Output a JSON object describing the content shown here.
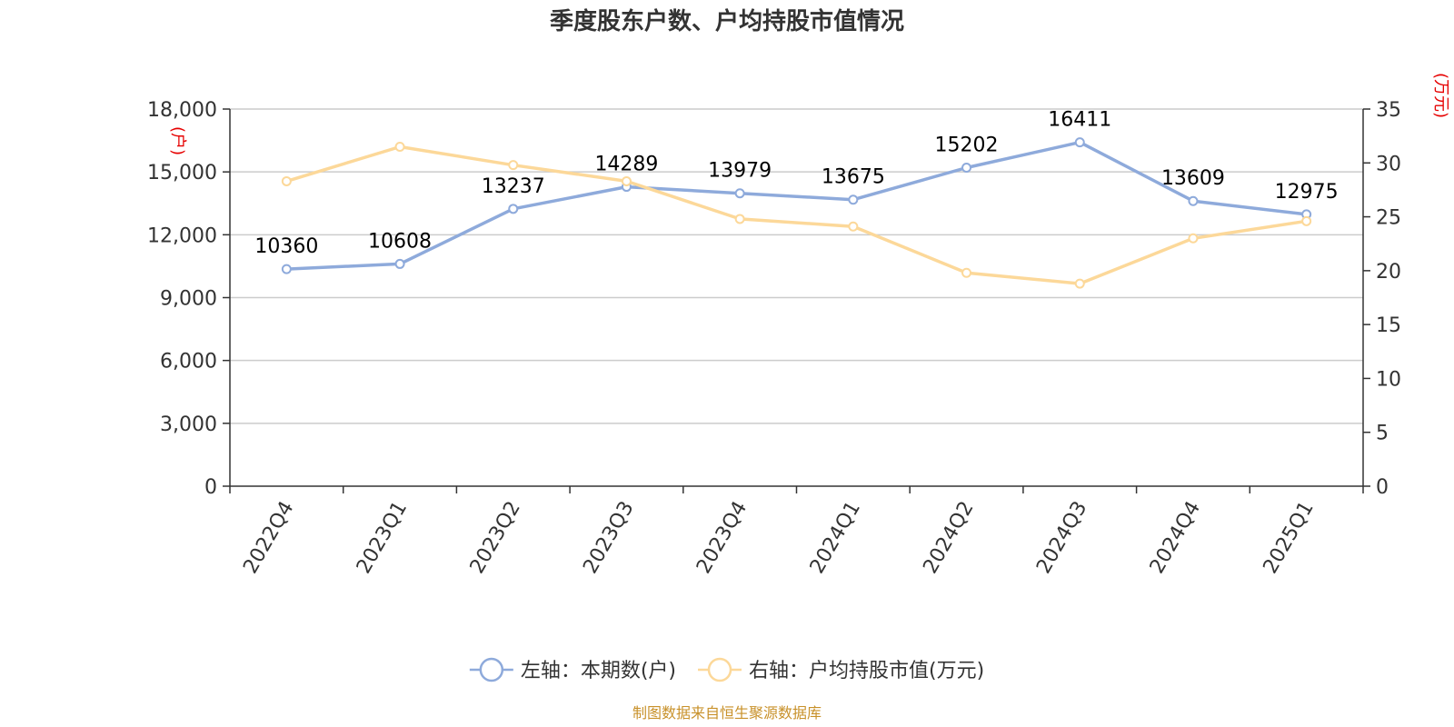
{
  "chart_data": {
    "type": "line",
    "title": "季度股东户数、户均持股市值情况",
    "categories": [
      "2022Q4",
      "2023Q1",
      "2023Q2",
      "2023Q3",
      "2023Q4",
      "2024Q1",
      "2024Q2",
      "2024Q3",
      "2024Q4",
      "2025Q1"
    ],
    "series": [
      {
        "name": "左轴：本期数(户)",
        "axis": "left",
        "color": "#8eaadb",
        "values": [
          10360,
          10608,
          13237,
          14289,
          13979,
          13675,
          15202,
          16411,
          13609,
          12975
        ],
        "data_labels": [
          "10360",
          "10608",
          "13237",
          "14289",
          "13979",
          "13675",
          "15202",
          "16411",
          "13609",
          "12975"
        ]
      },
      {
        "name": "右轴：户均持股市值(万元)",
        "axis": "right",
        "color": "#fcd899",
        "values": [
          28.3,
          31.5,
          29.8,
          28.3,
          24.8,
          24.1,
          19.8,
          18.8,
          23.0,
          24.6
        ]
      }
    ],
    "left_axis": {
      "unit_label": "(户)",
      "ylim": [
        0,
        18000
      ],
      "ticks": [
        "0",
        "3,000",
        "6,000",
        "9,000",
        "12,000",
        "15,000",
        "18,000"
      ]
    },
    "right_axis": {
      "unit_label": "(万元)",
      "ylim": [
        0,
        35
      ],
      "ticks": [
        "0",
        "5",
        "10",
        "15",
        "20",
        "25",
        "30",
        "35"
      ]
    },
    "grid": true,
    "legend_position": "bottom",
    "source": "制图数据来自恒生聚源数据库",
    "unit_color": "#e60000",
    "source_color": "#c8912a"
  }
}
